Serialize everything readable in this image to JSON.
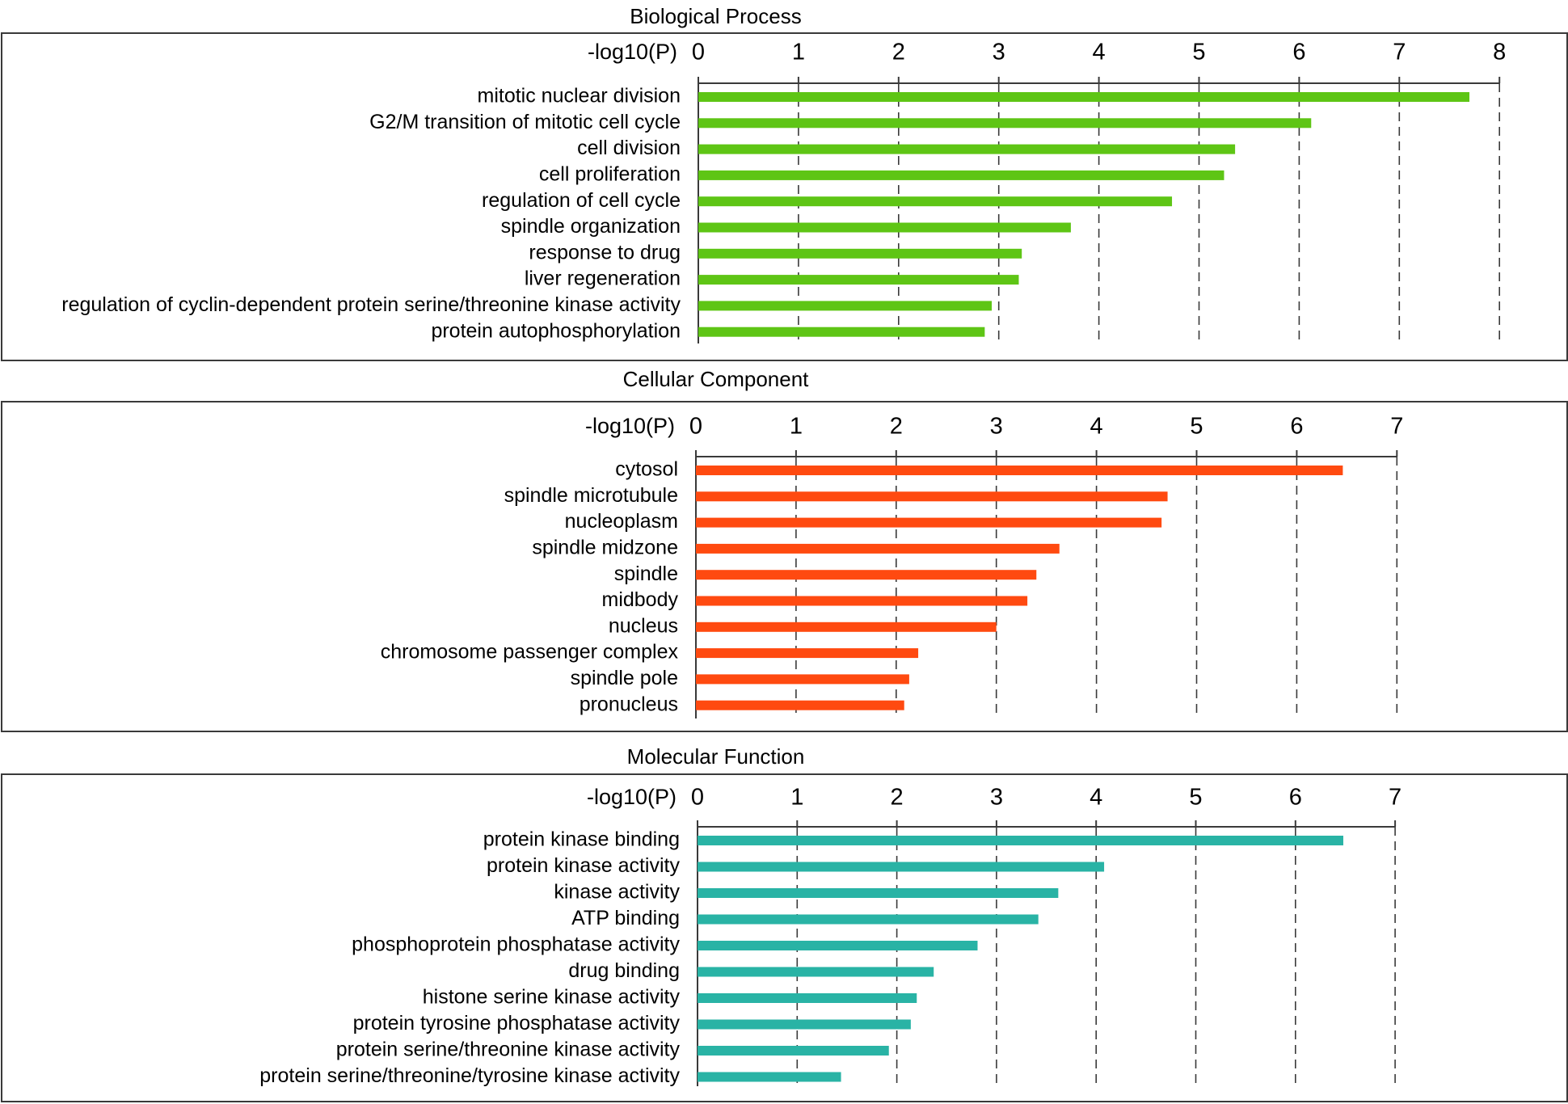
{
  "chart_data": [
    {
      "type": "bar",
      "orientation": "horizontal",
      "title": "Biological Process",
      "xlabel": "-log10(P)",
      "xlim": [
        0,
        8
      ],
      "ticks": [
        "0",
        "1",
        "2",
        "3",
        "4",
        "5",
        "6",
        "7",
        "8"
      ],
      "grid": "dashed vertical",
      "color": "#5EC515",
      "categories": [
        "mitotic nuclear division",
        "G2/M transition of mitotic cell cycle",
        "cell division",
        "cell proliferation",
        "regulation of cell cycle",
        "spindle organization",
        "response to drug",
        "liver regeneration",
        "regulation of cyclin-dependent protein serine/threonine kinase activity",
        "protein autophosphorylation"
      ],
      "values": [
        7.7,
        6.12,
        5.36,
        5.25,
        4.73,
        3.72,
        3.23,
        3.2,
        2.93,
        2.86
      ]
    },
    {
      "type": "bar",
      "orientation": "horizontal",
      "title": "Cellular Component",
      "xlabel": "-log10(P)",
      "xlim": [
        0,
        7
      ],
      "ticks": [
        "0",
        "1",
        "2",
        "3",
        "4",
        "5",
        "6",
        "7"
      ],
      "grid": "dashed vertical",
      "color": "#FF4A10",
      "categories": [
        "cytosol",
        "spindle microtubule",
        "nucleoplasm",
        "spindle midzone",
        "spindle",
        "midbody",
        "nucleus",
        "chromosome passenger complex",
        "spindle pole",
        "pronucleus"
      ],
      "values": [
        6.46,
        4.71,
        4.65,
        3.63,
        3.4,
        3.31,
        3.0,
        2.22,
        2.13,
        2.08
      ]
    },
    {
      "type": "bar",
      "orientation": "horizontal",
      "title": "Molecular Function",
      "xlabel": "-log10(P)",
      "xlim": [
        0,
        7
      ],
      "ticks": [
        "0",
        "1",
        "2",
        "3",
        "4",
        "5",
        "6",
        "7"
      ],
      "grid": "dashed vertical",
      "color": "#29B3A5",
      "categories": [
        "protein kinase binding",
        "protein kinase activity",
        "kinase activity",
        "ATP binding",
        "phosphoprotein phosphatase activity",
        "drug binding",
        "histone serine kinase activity",
        "protein tyrosine phosphatase activity",
        "protein serine/threonine kinase activity",
        "protein serine/threonine/tyrosine kinase activity"
      ],
      "values": [
        6.48,
        4.08,
        3.62,
        3.42,
        2.81,
        2.37,
        2.2,
        2.14,
        1.92,
        1.44
      ]
    }
  ]
}
